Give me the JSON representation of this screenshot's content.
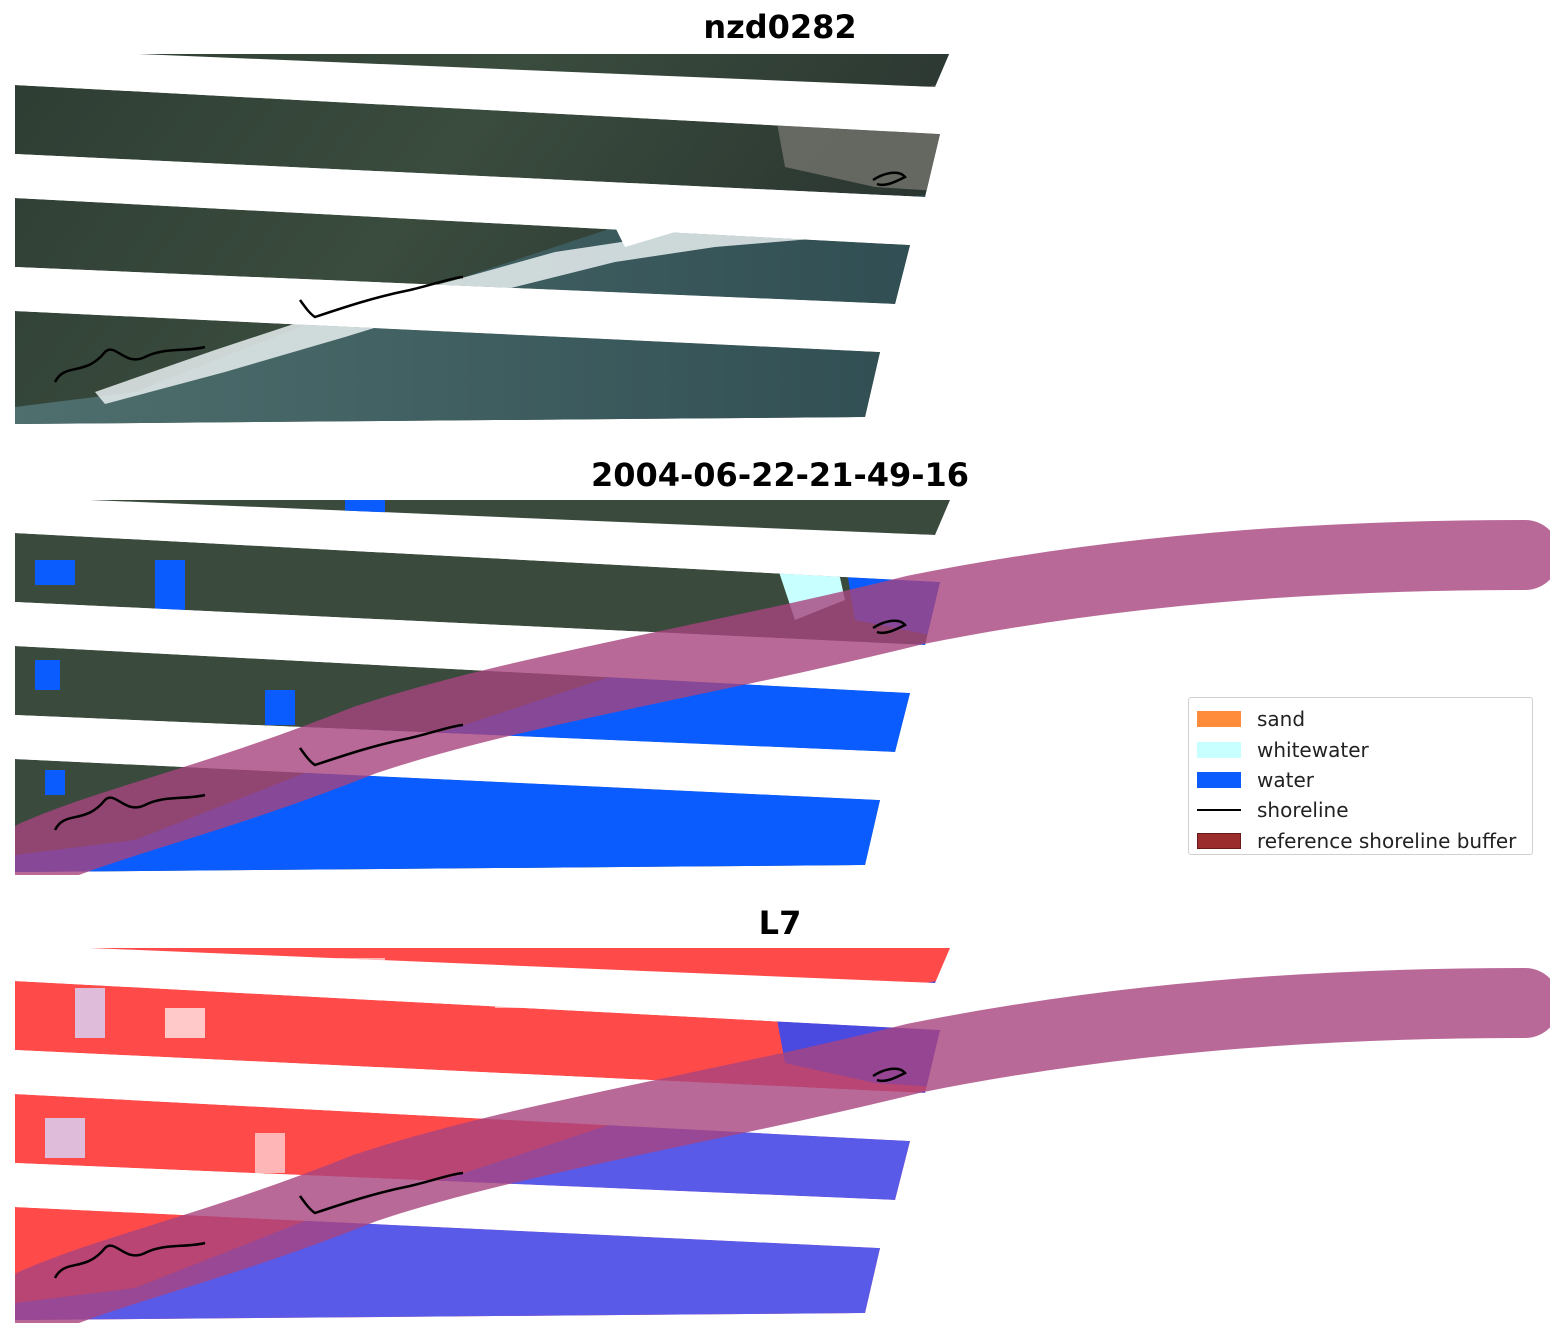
{
  "titles": {
    "top": "nzd0282",
    "middle": "2004-06-22-21-49-16",
    "bottom": "L7"
  },
  "legend": {
    "items": [
      {
        "label": "sand",
        "color": "#ff8c3a",
        "kind": "patch"
      },
      {
        "label": "whitewater",
        "color": "#c8ffff",
        "kind": "patch"
      },
      {
        "label": "water",
        "color": "#0a5cff",
        "kind": "patch"
      },
      {
        "label": "shoreline",
        "color": "#000000",
        "kind": "line"
      },
      {
        "label": "reference shoreline buffer",
        "color": "#9b2d2d",
        "kind": "patch"
      }
    ]
  },
  "colors": {
    "land_rgb": "#34463a",
    "water_rgb": "#3d5c5c",
    "classified_water": "#0a5cff",
    "whitewater": "#c8ffff",
    "buffer": "#a8437e",
    "index_land": "#ff4040",
    "index_water": "#5555ee",
    "shoreline": "#000000"
  }
}
